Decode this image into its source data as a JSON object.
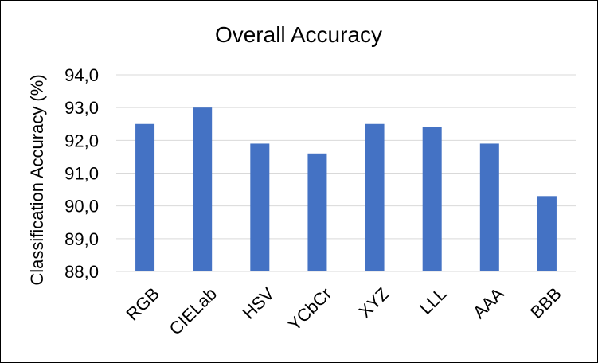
{
  "chart_data": {
    "type": "bar",
    "title": "Overall Accuracy",
    "xlabel": "",
    "ylabel": "Classification Accuracy (%)",
    "categories": [
      "RGB",
      "CIELab",
      "HSV",
      "YCbCr",
      "XYZ",
      "LLL",
      "AAA",
      "BBB"
    ],
    "values": [
      92.5,
      93.0,
      91.9,
      91.6,
      92.5,
      92.4,
      91.9,
      90.3
    ],
    "ylim": [
      88.0,
      94.0
    ],
    "yticks": [
      88.0,
      89.0,
      90.0,
      91.0,
      92.0,
      93.0,
      94.0
    ],
    "ytick_labels": [
      "88,0",
      "89,0",
      "90,0",
      "91,0",
      "92,0",
      "93,0",
      "94,0"
    ],
    "grid": true,
    "bar_color": "#4472c4",
    "grid_color": "#d9d9d9"
  }
}
